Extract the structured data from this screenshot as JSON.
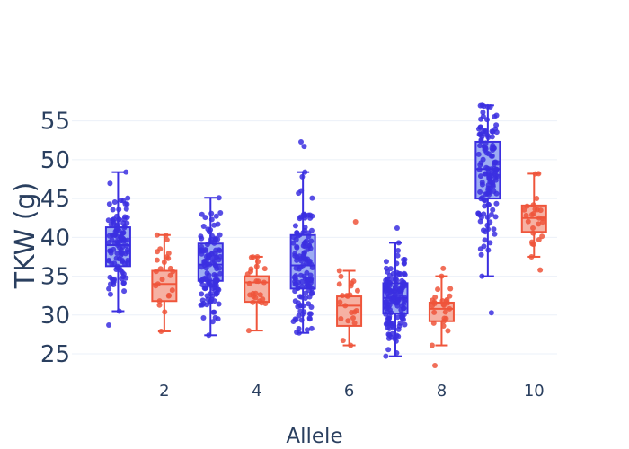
{
  "chart_data": {
    "type": "box",
    "xlabel": "Allele",
    "ylabel": "TKW (g)",
    "x_ticks": [
      "2",
      "4",
      "6",
      "8",
      "10"
    ],
    "x_range": [
      0,
      10.5
    ],
    "y_ticks": [
      "25",
      "30",
      "35",
      "40",
      "45",
      "50",
      "55"
    ],
    "y_range": [
      22,
      59
    ],
    "grid": true,
    "colors": {
      "blue": "#3b2fe0",
      "blue_fill": "#8c9df0",
      "red": "#ef553b",
      "red_fill": "#f5a393"
    },
    "series": [
      {
        "x": 1,
        "color": "blue",
        "min": 30.5,
        "q1": 36.3,
        "median": 39.0,
        "q3": 41.3,
        "max": 48.4,
        "n": 110,
        "outliers": [
          28.7
        ]
      },
      {
        "x": 2,
        "color": "red",
        "min": 27.9,
        "q1": 31.8,
        "median": 34.0,
        "q3": 35.7,
        "max": 40.3,
        "n": 25,
        "outliers": []
      },
      {
        "x": 3,
        "color": "blue",
        "min": 27.4,
        "q1": 34.4,
        "median": 36.5,
        "q3": 39.2,
        "max": 45.1,
        "n": 120,
        "outliers": []
      },
      {
        "x": 4,
        "color": "red",
        "min": 28.0,
        "q1": 31.7,
        "median": 34.2,
        "q3": 35.0,
        "max": 37.5,
        "n": 25,
        "outliers": []
      },
      {
        "x": 5,
        "color": "blue",
        "min": 27.7,
        "q1": 33.4,
        "median": 36.4,
        "q3": 40.3,
        "max": 48.4,
        "n": 130,
        "outliers": [
          51.7,
          52.3
        ]
      },
      {
        "x": 6,
        "color": "red",
        "min": 26.1,
        "q1": 28.6,
        "median": 31.2,
        "q3": 32.4,
        "max": 35.7,
        "n": 22,
        "outliers": [
          42.0
        ]
      },
      {
        "x": 7,
        "color": "blue",
        "min": 24.7,
        "q1": 30.2,
        "median": 32.2,
        "q3": 34.1,
        "max": 39.3,
        "n": 140,
        "outliers": [
          41.2
        ]
      },
      {
        "x": 8,
        "color": "red",
        "min": 26.1,
        "q1": 29.2,
        "median": 30.8,
        "q3": 31.6,
        "max": 35.0,
        "n": 25,
        "outliers": [
          23.5,
          36.0
        ]
      },
      {
        "x": 9,
        "color": "blue",
        "min": 35.0,
        "q1": 45.0,
        "median": 48.8,
        "q3": 52.3,
        "max": 57.0,
        "n": 130,
        "outliers": [
          30.3
        ]
      },
      {
        "x": 10,
        "color": "red",
        "min": 37.5,
        "q1": 40.7,
        "median": 42.5,
        "q3": 44.1,
        "max": 48.2,
        "n": 25,
        "outliers": [
          35.8
        ]
      }
    ]
  }
}
